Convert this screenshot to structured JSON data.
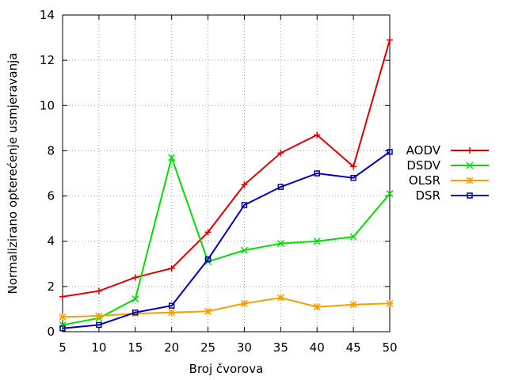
{
  "chart_data": {
    "type": "line",
    "x": [
      5,
      10,
      15,
      20,
      25,
      30,
      35,
      40,
      45,
      50
    ],
    "xlabel": "Broj čvorova",
    "ylabel": "Normalizirano opterećenje usmjeravanja",
    "xlim": [
      5,
      50
    ],
    "ylim": [
      0,
      14
    ],
    "xticks": [
      5,
      10,
      15,
      20,
      25,
      30,
      35,
      40,
      45,
      50
    ],
    "yticks": [
      0,
      2,
      4,
      6,
      8,
      10,
      12,
      14
    ],
    "grid": true,
    "legend_position": "right-outside",
    "series": [
      {
        "name": "AODV",
        "color": "#e00000",
        "marker": "plus",
        "values": [
          1.55,
          1.8,
          2.4,
          2.8,
          4.4,
          6.5,
          7.9,
          8.7,
          7.3,
          12.9
        ]
      },
      {
        "name": "DSDV",
        "color": "#00e000",
        "marker": "cross",
        "values": [
          0.3,
          0.6,
          1.45,
          7.7,
          3.1,
          3.6,
          3.9,
          4.0,
          4.2,
          6.1
        ]
      },
      {
        "name": "OLSR",
        "color": "#f5a000",
        "marker": "star",
        "values": [
          0.65,
          0.7,
          0.8,
          0.85,
          0.9,
          1.25,
          1.5,
          1.1,
          1.2,
          1.25
        ]
      },
      {
        "name": "DSR",
        "color": "#0000c0",
        "marker": "square",
        "values": [
          0.15,
          0.3,
          0.85,
          1.15,
          3.2,
          5.6,
          6.4,
          7.0,
          6.8,
          7.95
        ]
      }
    ]
  }
}
